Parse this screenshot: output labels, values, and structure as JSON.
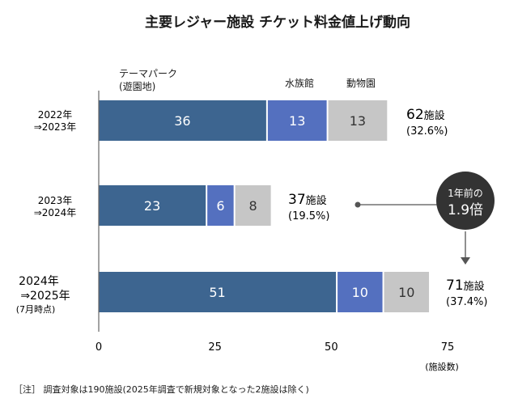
{
  "chart_data": {
    "type": "bar",
    "stacked": true,
    "orientation": "horizontal",
    "title": "主要レジャー施設 チケット料金値上げ動向",
    "categories": [
      {
        "line1": "2022年",
        "line2": "⇒2023年",
        "line3": ""
      },
      {
        "line1": "2023年",
        "line2": "⇒2024年",
        "line3": ""
      },
      {
        "line1": "2024年",
        "line2": "⇒2025年",
        "line3": "(7月時点)"
      }
    ],
    "series": [
      {
        "name": "テーマパーク(遊園地)",
        "name_line1": "テーマパーク",
        "name_line2": "(遊園地)",
        "values": [
          36,
          23,
          51
        ],
        "color": "#3d6590"
      },
      {
        "name": "水族館",
        "name_line1": "水族館",
        "name_line2": "",
        "values": [
          13,
          6,
          10
        ],
        "color": "#5470bf"
      },
      {
        "name": "動物園",
        "name_line1": "動物園",
        "name_line2": "",
        "values": [
          13,
          8,
          10
        ],
        "color": "#c6c6c6"
      }
    ],
    "totals": [
      {
        "count": "62",
        "unit": "施設",
        "pct": "(32.6%)"
      },
      {
        "count": "37",
        "unit": "施設",
        "pct": "(19.5%)"
      },
      {
        "count": "71",
        "unit": "施設",
        "pct": "(37.4%)"
      }
    ],
    "xlim": [
      0,
      75
    ],
    "xticks": [
      0,
      25,
      50,
      75
    ],
    "xlabel": "(施設数)",
    "annotation": {
      "line1": "1年前の",
      "line2": "1.9倍"
    },
    "note": "［注］ 調査対象は190施設(2025年調査で新規対象となった2施設は除く)"
  }
}
